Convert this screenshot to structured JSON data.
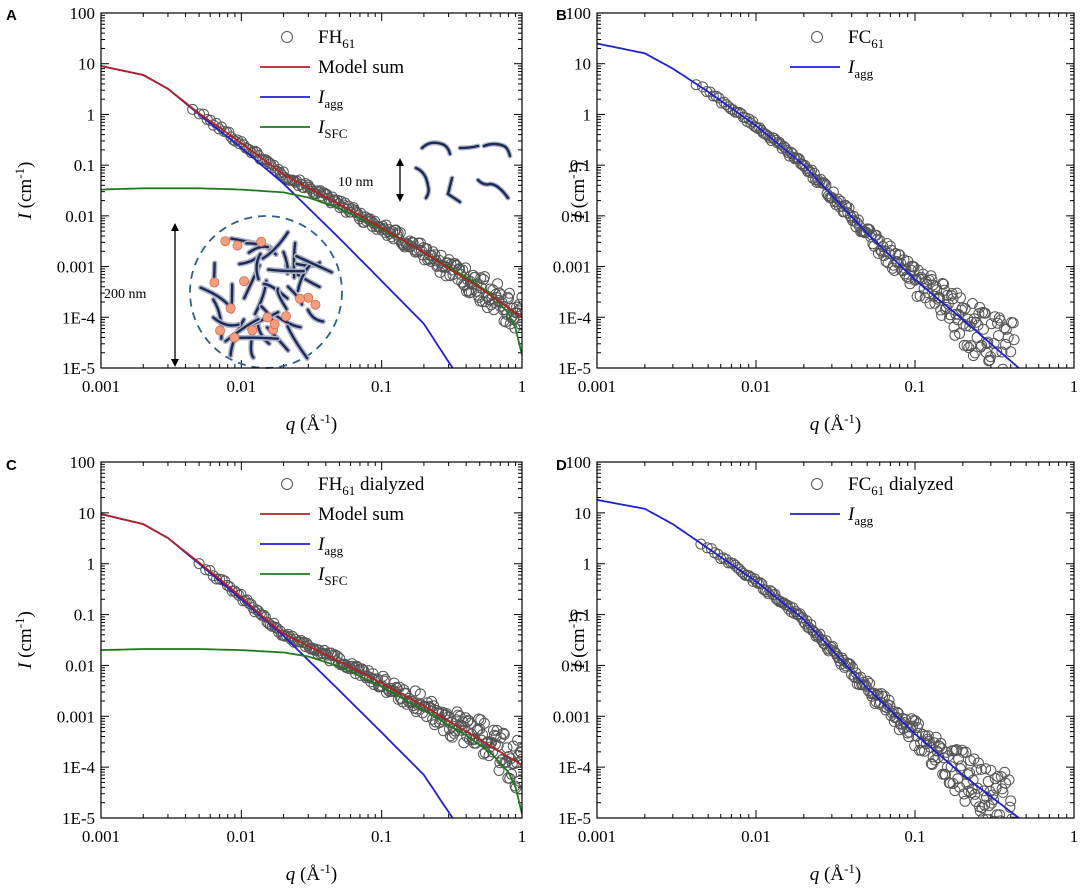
{
  "figure": {
    "axis_labels": {
      "x_var": "q",
      "x_unit_open": " (Å",
      "x_unit_exp": "-1",
      "x_unit_close": ")",
      "y_var": "I",
      "y_unit_open": " (cm",
      "y_unit_exp": "-1",
      "y_unit_close": ")"
    },
    "x_tick_labels": [
      "0.001",
      "0.01",
      "0.1",
      "1"
    ],
    "y_tick_labels": [
      "1E-5",
      "1E-4",
      "0.001",
      "0.01",
      "0.1",
      "1",
      "10",
      "100"
    ],
    "annotations": {
      "small_scale": "10 nm",
      "large_scale": "200 nm"
    },
    "colors": {
      "model_sum": "#b22222",
      "agg": "#1f1fd6",
      "sfc": "#1e7a1e",
      "points": "#555555",
      "cluster_dash": "#2f5f8f",
      "rod": "#1a2a5a",
      "bead": "#f0a080"
    }
  },
  "chart_data": [
    {
      "panel": "A",
      "type": "scatter",
      "xscale": "log",
      "yscale": "log",
      "xlim": [
        0.001,
        1
      ],
      "ylim": [
        1e-05,
        100
      ],
      "xlabel": "q (Å-1)",
      "ylabel": "I (cm-1)",
      "legend": [
        {
          "base": "FH",
          "sub": "61",
          "tail": "",
          "kind": "marker"
        },
        {
          "base": "Model sum",
          "sub": "",
          "tail": "",
          "kind": "model"
        },
        {
          "base": "I",
          "sub": "agg",
          "tail": "",
          "kind": "agg"
        },
        {
          "base": "I",
          "sub": "SFC",
          "tail": "",
          "kind": "sfc"
        }
      ],
      "scatter": {
        "name": "FH61",
        "q_min": 0.0045,
        "q_max": 1.0,
        "scatter_dex_low": 0.05,
        "scatter_dex_high": 0.4
      },
      "series": [
        {
          "name": "Model sum",
          "x": [
            0.001,
            0.002,
            0.003,
            0.005,
            0.007,
            0.01,
            0.015,
            0.02,
            0.03,
            0.05,
            0.1,
            0.2,
            0.5,
            1.0
          ],
          "y": [
            9.0,
            6.0,
            3.2,
            1.05,
            0.55,
            0.27,
            0.12,
            0.065,
            0.036,
            0.017,
            0.0058,
            0.0019,
            0.00038,
            0.0001
          ]
        },
        {
          "name": "I_agg",
          "x": [
            0.001,
            0.002,
            0.003,
            0.005,
            0.01,
            0.02,
            0.05,
            0.1,
            0.2,
            0.32
          ],
          "y": [
            9.0,
            6.0,
            3.2,
            1.0,
            0.22,
            0.043,
            0.0036,
            0.00052,
            7.4e-05,
            1e-05
          ]
        },
        {
          "name": "I_SFC",
          "x": [
            0.001,
            0.002,
            0.005,
            0.01,
            0.02,
            0.03,
            0.05,
            0.1,
            0.2,
            0.4,
            0.6,
            0.8,
            0.9,
            1.0
          ],
          "y": [
            0.033,
            0.035,
            0.035,
            0.033,
            0.029,
            0.023,
            0.014,
            0.0055,
            0.0019,
            0.00062,
            0.00029,
            0.00012,
            6e-05,
            1.8e-05
          ]
        }
      ],
      "insets": true
    },
    {
      "panel": "B",
      "type": "scatter",
      "xscale": "log",
      "yscale": "log",
      "xlim": [
        0.001,
        1
      ],
      "ylim": [
        1e-05,
        100
      ],
      "xlabel": "q (Å-1)",
      "ylabel": "I (cm-1)",
      "legend": [
        {
          "base": "FC",
          "sub": "61",
          "tail": "",
          "kind": "marker"
        },
        {
          "base": "I",
          "sub": "agg",
          "tail": "",
          "kind": "agg"
        }
      ],
      "scatter": {
        "name": "FC61",
        "q_min": 0.0042,
        "q_max": 0.42,
        "scatter_dex_low": 0.04,
        "scatter_dex_high": 0.8
      },
      "series": [
        {
          "name": "I_agg",
          "x": [
            0.001,
            0.002,
            0.003,
            0.005,
            0.01,
            0.02,
            0.05,
            0.1,
            0.2,
            0.45
          ],
          "y": [
            25.0,
            16.0,
            8.0,
            2.8,
            0.6,
            0.1,
            0.0045,
            0.00055,
            9e-05,
            1e-05
          ]
        }
      ],
      "insets": false
    },
    {
      "panel": "C",
      "type": "scatter",
      "xscale": "log",
      "yscale": "log",
      "xlim": [
        0.001,
        1
      ],
      "ylim": [
        1e-05,
        100
      ],
      "xlabel": "q (Å-1)",
      "ylabel": "I (cm-1)",
      "legend": [
        {
          "base": "FH",
          "sub": "61",
          "tail": " dialyzed",
          "kind": "marker"
        },
        {
          "base": "Model sum",
          "sub": "",
          "tail": "",
          "kind": "model"
        },
        {
          "base": "I",
          "sub": "agg",
          "tail": "",
          "kind": "agg"
        },
        {
          "base": "I",
          "sub": "SFC",
          "tail": "",
          "kind": "sfc"
        }
      ],
      "scatter": {
        "name": "FH61 dialyzed",
        "q_min": 0.005,
        "q_max": 1.0,
        "scatter_dex_low": 0.05,
        "scatter_dex_high": 0.6
      },
      "series": [
        {
          "name": "Model sum",
          "x": [
            0.001,
            0.002,
            0.003,
            0.005,
            0.007,
            0.01,
            0.015,
            0.02,
            0.03,
            0.05,
            0.1,
            0.2,
            0.5,
            1.0
          ],
          "y": [
            9.5,
            6.0,
            3.2,
            1.05,
            0.5,
            0.22,
            0.08,
            0.042,
            0.024,
            0.012,
            0.0045,
            0.0016,
            0.00035,
            0.00011
          ]
        },
        {
          "name": "I_agg",
          "x": [
            0.001,
            0.002,
            0.003,
            0.005,
            0.01,
            0.02,
            0.05,
            0.1,
            0.2,
            0.32
          ],
          "y": [
            9.5,
            6.0,
            3.2,
            1.0,
            0.2,
            0.038,
            0.0032,
            0.00048,
            7e-05,
            1e-05
          ]
        },
        {
          "name": "I_SFC",
          "x": [
            0.001,
            0.002,
            0.005,
            0.01,
            0.02,
            0.03,
            0.05,
            0.1,
            0.2,
            0.4,
            0.6,
            0.8,
            0.9,
            1.0
          ],
          "y": [
            0.02,
            0.021,
            0.021,
            0.02,
            0.018,
            0.015,
            0.0095,
            0.0038,
            0.0013,
            0.00042,
            0.00019,
            8e-05,
            4e-05,
            1.2e-05
          ]
        }
      ],
      "insets": false
    },
    {
      "panel": "D",
      "type": "scatter",
      "xscale": "log",
      "yscale": "log",
      "xlim": [
        0.001,
        1
      ],
      "ylim": [
        1e-05,
        100
      ],
      "xlabel": "q (Å-1)",
      "ylabel": "I (cm-1)",
      "legend": [
        {
          "base": "FC",
          "sub": "61",
          "tail": " dialyzed",
          "kind": "marker"
        },
        {
          "base": "I",
          "sub": "agg",
          "tail": "",
          "kind": "agg"
        }
      ],
      "scatter": {
        "name": "FC61 dialyzed",
        "q_min": 0.0045,
        "q_max": 0.42,
        "scatter_dex_low": 0.04,
        "scatter_dex_high": 0.8
      },
      "series": [
        {
          "name": "I_agg",
          "x": [
            0.001,
            0.002,
            0.003,
            0.005,
            0.01,
            0.02,
            0.05,
            0.1,
            0.2,
            0.45
          ],
          "y": [
            18.0,
            12.0,
            6.0,
            2.0,
            0.45,
            0.08,
            0.0036,
            0.00045,
            7e-05,
            1e-05
          ]
        }
      ],
      "insets": false
    }
  ]
}
